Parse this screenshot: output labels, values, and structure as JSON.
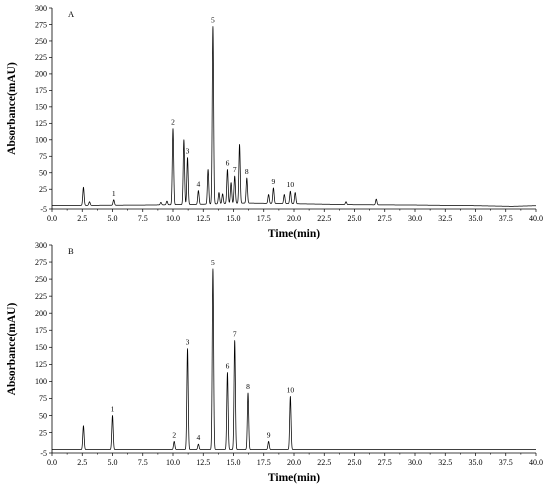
{
  "chart_data": [
    {
      "type": "line",
      "panel_label": "A",
      "xlabel": "Time(min)",
      "ylabel": "Absorbance(mAU)",
      "xlim": [
        0,
        40
      ],
      "ylim": [
        -5,
        300
      ],
      "x_ticks": [
        0,
        2.5,
        5,
        7.5,
        10,
        12.5,
        15,
        17.5,
        20,
        22.5,
        25,
        27.5,
        30,
        32.5,
        35,
        37.5,
        40
      ],
      "x_tick_labels": [
        "0.0",
        "2.5",
        "5.0",
        "7.5",
        "10.0",
        "12.5",
        "15.0",
        "17.5",
        "20.0",
        "22.5",
        "25.0",
        "27.5",
        "30.0",
        "32.5",
        "35.0",
        "37.5",
        "40.0"
      ],
      "y_ticks": [
        -5,
        25,
        50,
        75,
        100,
        125,
        150,
        175,
        200,
        225,
        250,
        275,
        300
      ],
      "y_tick_labels": [
        "-5",
        "25",
        "50",
        "75",
        "100",
        "125",
        "150",
        "175",
        "200",
        "225",
        "250",
        "275",
        "300"
      ],
      "grid": false,
      "baseline": [
        [
          0,
          0.5
        ],
        [
          3,
          0.5
        ],
        [
          8,
          1
        ],
        [
          12,
          2
        ],
        [
          16,
          4
        ],
        [
          20,
          3
        ],
        [
          25,
          1.5
        ],
        [
          30,
          1
        ],
        [
          35,
          0
        ],
        [
          38,
          -1
        ],
        [
          40,
          0
        ]
      ],
      "peaks": [
        {
          "x": 2.6,
          "y": 28
        },
        {
          "x": 3.1,
          "y": 6
        },
        {
          "x": 5.1,
          "y": 9,
          "label": "1"
        },
        {
          "x": 9.0,
          "y": 5
        },
        {
          "x": 9.5,
          "y": 7
        },
        {
          "x": 10.0,
          "y": 117,
          "label": "2"
        },
        {
          "x": 10.9,
          "y": 100
        },
        {
          "x": 11.2,
          "y": 73,
          "label": "3"
        },
        {
          "x": 12.1,
          "y": 23,
          "label": "4"
        },
        {
          "x": 12.9,
          "y": 55
        },
        {
          "x": 13.3,
          "y": 272,
          "label": "5"
        },
        {
          "x": 13.8,
          "y": 20
        },
        {
          "x": 14.1,
          "y": 18
        },
        {
          "x": 14.5,
          "y": 55,
          "label": "6"
        },
        {
          "x": 14.8,
          "y": 35
        },
        {
          "x": 15.1,
          "y": 45,
          "label": "7"
        },
        {
          "x": 15.5,
          "y": 93
        },
        {
          "x": 16.1,
          "y": 42,
          "label": "8"
        },
        {
          "x": 17.9,
          "y": 17
        },
        {
          "x": 18.3,
          "y": 27,
          "label": "9"
        },
        {
          "x": 19.2,
          "y": 17
        },
        {
          "x": 19.7,
          "y": 22,
          "label": "10"
        },
        {
          "x": 20.1,
          "y": 20
        },
        {
          "x": 24.3,
          "y": 6
        },
        {
          "x": 26.8,
          "y": 10
        }
      ]
    },
    {
      "type": "line",
      "panel_label": "B",
      "xlabel": "Time(min)",
      "ylabel": "Absorbance(mAU)",
      "xlim": [
        0,
        40
      ],
      "ylim": [
        -5,
        300
      ],
      "x_ticks": [
        0,
        2.5,
        5,
        7.5,
        10,
        12.5,
        15,
        17.5,
        20,
        22.5,
        25,
        27.5,
        30,
        32.5,
        35,
        37.5,
        40
      ],
      "x_tick_labels": [
        "0.0",
        "2.5",
        "5.0",
        "7.5",
        "10.0",
        "12.5",
        "15.0",
        "17.5",
        "20.0",
        "22.5",
        "25.0",
        "27.5",
        "30.0",
        "32.5",
        "35.0",
        "37.5",
        "40.0"
      ],
      "y_ticks": [
        -5,
        25,
        50,
        75,
        100,
        125,
        150,
        175,
        200,
        225,
        250,
        275,
        300
      ],
      "y_tick_labels": [
        "-5",
        "25",
        "50",
        "75",
        "100",
        "125",
        "150",
        "175",
        "200",
        "225",
        "250",
        "275",
        "300"
      ],
      "grid": false,
      "baseline": [
        [
          0,
          0
        ],
        [
          40,
          0
        ]
      ],
      "peaks": [
        {
          "x": 2.6,
          "y": 35
        },
        {
          "x": 5.0,
          "y": 50,
          "label": "1"
        },
        {
          "x": 10.1,
          "y": 12,
          "label": "2"
        },
        {
          "x": 11.2,
          "y": 148,
          "label": "3"
        },
        {
          "x": 12.1,
          "y": 8,
          "label": "4"
        },
        {
          "x": 13.3,
          "y": 265,
          "label": "5"
        },
        {
          "x": 14.5,
          "y": 113,
          "label": "6"
        },
        {
          "x": 15.1,
          "y": 160,
          "label": "7"
        },
        {
          "x": 16.2,
          "y": 83,
          "label": "8"
        },
        {
          "x": 17.9,
          "y": 12,
          "label": "9"
        },
        {
          "x": 19.7,
          "y": 78,
          "label": "10"
        }
      ]
    }
  ]
}
